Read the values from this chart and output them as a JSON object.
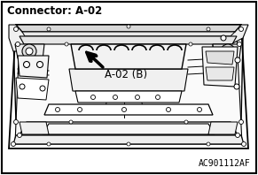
{
  "title": "Connector: A-02",
  "label_connector": "A-02 (B)",
  "watermark": "AC901112AF",
  "bg_color": "#ffffff",
  "border_color": "#000000",
  "fig_width": 2.91,
  "fig_height": 1.98,
  "dpi": 100
}
